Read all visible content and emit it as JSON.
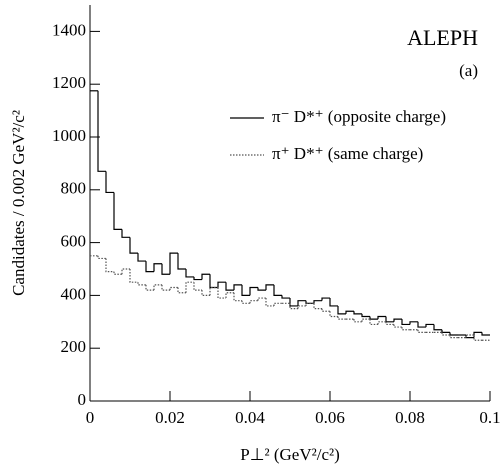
{
  "chart_data": {
    "type": "histogram",
    "annotations": [
      "ALEPH",
      "(a)"
    ],
    "x_label": "P⊥² (GeV²/c²)",
    "y_label": "Candidates / 0.002 GeV²/c²",
    "bins": [
      0,
      0.002,
      0.004,
      0.006,
      0.008,
      0.01,
      0.012,
      0.014,
      0.016,
      0.018,
      0.02,
      0.022,
      0.024,
      0.026,
      0.028,
      0.03,
      0.032,
      0.034,
      0.036,
      0.038,
      0.04,
      0.042,
      0.044,
      0.046,
      0.048,
      0.05,
      0.052,
      0.054,
      0.056,
      0.058,
      0.06,
      0.062,
      0.064,
      0.066,
      0.068,
      0.07,
      0.072,
      0.074,
      0.076,
      0.078,
      0.08,
      0.082,
      0.084,
      0.086,
      0.088,
      0.09,
      0.092,
      0.094,
      0.096,
      0.098,
      0.1
    ],
    "series": [
      {
        "name": "π⁻ D*⁺ (opposite charge)",
        "color": "#000000",
        "style": "solid",
        "values": [
          1175,
          870,
          790,
          650,
          620,
          560,
          530,
          490,
          520,
          480,
          560,
          500,
          470,
          460,
          480,
          430,
          450,
          420,
          440,
          400,
          430,
          420,
          440,
          400,
          390,
          360,
          380,
          370,
          380,
          390,
          360,
          330,
          340,
          330,
          320,
          310,
          320,
          300,
          310,
          290,
          300,
          280,
          290,
          270,
          260,
          250,
          250,
          240,
          260,
          250
        ]
      },
      {
        "name": "π⁺ D*⁺ (same charge)",
        "color": "#555555",
        "style": "dotted",
        "values": [
          550,
          540,
          490,
          480,
          500,
          450,
          440,
          420,
          440,
          420,
          430,
          410,
          450,
          420,
          400,
          430,
          390,
          410,
          380,
          370,
          380,
          390,
          360,
          370,
          370,
          350,
          360,
          370,
          350,
          340,
          320,
          310,
          310,
          300,
          310,
          290,
          300,
          290,
          280,
          270,
          270,
          260,
          260,
          260,
          250,
          240,
          240,
          250,
          230,
          230
        ]
      }
    ],
    "xlim": [
      0,
      0.1
    ],
    "ylim": [
      0,
      1500
    ],
    "xticks": [
      0,
      0.02,
      0.04,
      0.06,
      0.08,
      0.1
    ],
    "yticks": [
      0,
      200,
      400,
      600,
      800,
      1000,
      1200,
      1400
    ]
  }
}
